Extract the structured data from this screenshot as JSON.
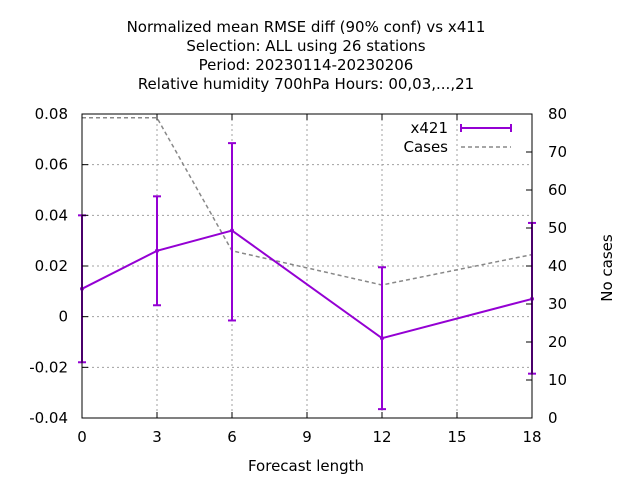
{
  "chart_data": {
    "type": "line",
    "title_lines": [
      "Normalized mean RMSE diff (90% conf) vs x411",
      "Selection: ALL using    26 stations",
      "Period: 20230114-20230206",
      "Relative humidity 700hPa   Hours:  00,03,...,21"
    ],
    "xlabel": "Forecast length",
    "ylabel": "",
    "y2label": "No cases",
    "xlim": [
      0,
      18
    ],
    "ylim": [
      -0.04,
      0.08
    ],
    "y2lim": [
      0,
      80
    ],
    "xticks": [
      "0",
      "3",
      "6",
      "9",
      "12",
      "15",
      "18"
    ],
    "yticks": [
      "-0.04",
      "-0.02",
      "0",
      "0.02",
      "0.04",
      "0.06",
      "0.08"
    ],
    "y2ticks": [
      "0",
      "10",
      "20",
      "30",
      "40",
      "50",
      "60",
      "70",
      "80"
    ],
    "grid": true,
    "legend_position": "top-right",
    "colors": {
      "x421": "#9400d3",
      "cases": "#888888"
    },
    "series": [
      {
        "name": "x421",
        "axis": "left",
        "style": "line-errorbars",
        "x": [
          0,
          3,
          6,
          12,
          18
        ],
        "y": [
          0.011,
          0.026,
          0.034,
          -0.0085,
          0.007
        ],
        "err_low": [
          -0.018,
          0.0045,
          -0.0015,
          -0.0365,
          -0.0225
        ],
        "err_high": [
          0.04,
          0.0475,
          0.0685,
          0.0195,
          0.037
        ]
      },
      {
        "name": "Cases",
        "axis": "right",
        "style": "dashed",
        "x": [
          0,
          3,
          6,
          12,
          18
        ],
        "y": [
          79,
          79,
          44,
          35,
          43
        ]
      }
    ]
  }
}
